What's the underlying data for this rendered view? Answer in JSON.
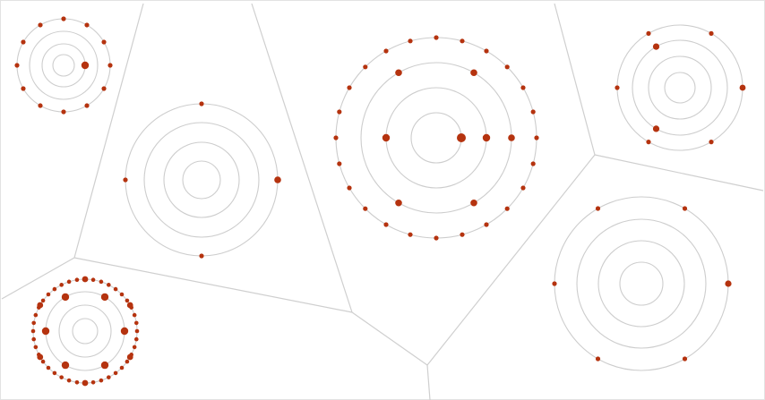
{
  "diagram": {
    "kind": "voronoi-orbit-diagram",
    "colors": {
      "background": "#ffffff",
      "cell_edge": "#cfcfcf",
      "ring": "#cdcdcd",
      "dot": "#b5330f"
    },
    "cells": [
      {
        "name": "cell-top-left",
        "rings": 4,
        "outer_dots": 12,
        "inner_dots": 1
      },
      {
        "name": "cell-mid-left",
        "rings": 4,
        "outer_dots": 4,
        "inner_dots": 1
      },
      {
        "name": "cell-center",
        "rings": 4,
        "outer_dots": 24,
        "inner_dots": 10
      },
      {
        "name": "cell-top-right",
        "rings": 4,
        "outer_dots": 4,
        "inner_dots": 4
      },
      {
        "name": "cell-bottom-left",
        "rings": 4,
        "outer_dots": 40,
        "inner_dots": 12
      },
      {
        "name": "cell-bottom-right",
        "rings": 4,
        "outer_dots": 6,
        "inner_dots": 1
      }
    ]
  }
}
